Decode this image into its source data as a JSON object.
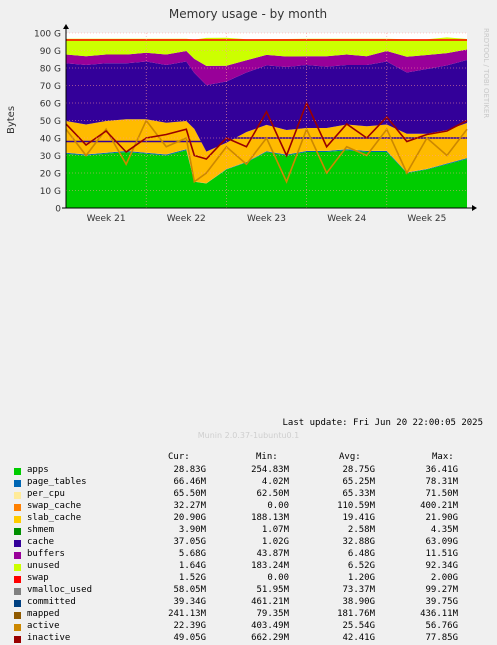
{
  "chart_data": {
    "type": "area",
    "title": "Memory usage - by month",
    "ylabel": "Bytes",
    "side_label": "RRDTOOL / TOBI OETIKER",
    "ylim": [
      0,
      100
    ],
    "ytick_labels": [
      "0",
      "10 G",
      "20 G",
      "30 G",
      "40 G",
      "50 G",
      "60 G",
      "70 G",
      "80 G",
      "90 G",
      "100 G"
    ],
    "ytick_values": [
      0,
      10,
      20,
      30,
      40,
      50,
      60,
      70,
      80,
      90,
      100
    ],
    "xtick_labels": [
      "Week 21",
      "Week 22",
      "Week 23",
      "Week 24",
      "Week 25"
    ],
    "xtick_positions": [
      0.5,
      1.5,
      2.5,
      3.5,
      4.5
    ],
    "xlim": [
      0,
      5
    ],
    "grid": true,
    "x": [
      0,
      0.25,
      0.5,
      0.75,
      1,
      1.25,
      1.5,
      1.6,
      1.75,
      2,
      2.25,
      2.5,
      2.75,
      3,
      3.25,
      3.5,
      3.75,
      4,
      4.25,
      4.5,
      4.75,
      5
    ],
    "stacked_series": [
      {
        "name": "apps",
        "color": "#00cc00",
        "values": [
          31,
          30,
          31,
          32,
          31,
          30,
          33,
          15,
          14,
          22,
          26,
          32,
          30,
          32,
          32,
          33,
          32,
          32,
          20,
          22,
          25,
          28
        ]
      },
      {
        "name": "page_tables",
        "color": "#0066b3",
        "values": [
          0.6,
          0.6,
          0.6,
          0.6,
          0.6,
          0.6,
          0.6,
          0.1,
          0.1,
          0.2,
          0.3,
          0.4,
          0.5,
          0.6,
          0.6,
          0.6,
          0.6,
          0.6,
          0.3,
          0.3,
          0.4,
          0.5
        ]
      },
      {
        "name": "per_cpu",
        "color": "#ffcc00",
        "values": [
          0.1,
          0.1,
          0.1,
          0.1,
          0.1,
          0.1,
          0.1,
          0.1,
          0.1,
          0.1,
          0.1,
          0.1,
          0.1,
          0.1,
          0.1,
          0.1,
          0.1,
          0.1,
          0.1,
          0.1,
          0.1,
          0.1
        ]
      },
      {
        "name": "slab_cache",
        "color": "#ffbb00",
        "values": [
          18,
          17,
          18,
          18,
          19,
          18,
          16,
          30,
          18,
          15,
          17,
          15,
          14,
          13,
          13,
          14,
          14,
          15,
          22,
          20,
          19,
          20
        ]
      },
      {
        "name": "cache",
        "color": "#330099",
        "values": [
          33,
          34,
          33,
          32,
          33,
          33,
          34,
          32,
          38,
          35,
          34,
          34,
          36,
          36,
          35,
          34,
          35,
          36,
          35,
          37,
          37,
          36
        ]
      },
      {
        "name": "buffers",
        "color": "#990099",
        "values": [
          5,
          5,
          5,
          5,
          5,
          6,
          6,
          8,
          11,
          9,
          7,
          6,
          6,
          5,
          6,
          6,
          5,
          6,
          9,
          8,
          7,
          6
        ]
      },
      {
        "name": "unused",
        "color": "#ccff00",
        "values": [
          9,
          10,
          9,
          9,
          8,
          9,
          7,
          11,
          16,
          16,
          12,
          9,
          10,
          10,
          10,
          9,
          10,
          7,
          10,
          9,
          9,
          6
        ]
      }
    ],
    "line_series": [
      {
        "name": "swap",
        "color": "#ff0000",
        "values": [
          1.5,
          1.5,
          1.5,
          1.5,
          1.5,
          1.5,
          1.5,
          1.5,
          1.5,
          1.5,
          1.5,
          1.5,
          1.5,
          1.5,
          1.5,
          1.5,
          1.5,
          1.5,
          1.5,
          1.5,
          1.5,
          1.5
        ],
        "draw": "top"
      },
      {
        "name": "committed",
        "color": "#330099",
        "values": [
          38,
          38,
          38,
          38,
          38,
          38,
          38,
          38,
          38,
          40,
          40,
          40,
          40,
          40,
          40,
          40,
          40,
          40,
          40,
          40,
          40,
          40
        ]
      },
      {
        "name": "active",
        "color": "#cc8800",
        "values": [
          45,
          30,
          45,
          25,
          50,
          35,
          40,
          15,
          20,
          35,
          25,
          40,
          15,
          45,
          20,
          35,
          30,
          45,
          20,
          40,
          30,
          45
        ]
      },
      {
        "name": "inactive",
        "color": "#990000",
        "values": [
          48,
          36,
          44,
          32,
          40,
          42,
          45,
          30,
          28,
          40,
          35,
          55,
          30,
          60,
          35,
          48,
          40,
          52,
          38,
          42,
          44,
          50
        ]
      }
    ]
  },
  "legend": {
    "headers": [
      "Cur:",
      "Min:",
      "Avg:",
      "Max:"
    ],
    "rows": [
      {
        "name": "apps",
        "color": "#00cc00",
        "cur": "28.83G",
        "min": "254.83M",
        "avg": "28.75G",
        "max": "36.41G"
      },
      {
        "name": "page_tables",
        "color": "#0066b3",
        "cur": "66.46M",
        "min": "4.02M",
        "avg": "65.25M",
        "max": "78.31M"
      },
      {
        "name": "per_cpu",
        "color": "#ffeb99",
        "cur": "65.50M",
        "min": "62.50M",
        "avg": "65.33M",
        "max": "71.50M"
      },
      {
        "name": "swap_cache",
        "color": "#ff8000",
        "cur": "32.27M",
        "min": "0.00",
        "avg": "110.59M",
        "max": "400.21M"
      },
      {
        "name": "slab_cache",
        "color": "#ffcc00",
        "cur": "20.90G",
        "min": "188.13M",
        "avg": "19.41G",
        "max": "21.90G"
      },
      {
        "name": "shmem",
        "color": "#008f00",
        "cur": "3.90M",
        "min": "1.07M",
        "avg": "2.58M",
        "max": "4.35M"
      },
      {
        "name": "cache",
        "color": "#330099",
        "cur": "37.05G",
        "min": "1.02G",
        "avg": "32.88G",
        "max": "63.09G"
      },
      {
        "name": "buffers",
        "color": "#990099",
        "cur": "5.68G",
        "min": "43.87M",
        "avg": "6.48G",
        "max": "11.51G"
      },
      {
        "name": "unused",
        "color": "#ccff00",
        "cur": "1.64G",
        "min": "183.24M",
        "avg": "6.52G",
        "max": "92.34G"
      },
      {
        "name": "swap",
        "color": "#ff0000",
        "cur": "1.52G",
        "min": "0.00",
        "avg": "1.20G",
        "max": "2.00G"
      },
      {
        "name": "vmalloc_used",
        "color": "#808080",
        "cur": "58.05M",
        "min": "51.95M",
        "avg": "73.37M",
        "max": "99.27M"
      },
      {
        "name": "committed",
        "color": "#004080",
        "cur": "39.34G",
        "min": "461.21M",
        "avg": "38.90G",
        "max": "39.75G"
      },
      {
        "name": "mapped",
        "color": "#8f5a00",
        "cur": "241.13M",
        "min": "79.35M",
        "avg": "181.76M",
        "max": "436.11M"
      },
      {
        "name": "active",
        "color": "#cc8800",
        "cur": "22.39G",
        "min": "403.49M",
        "avg": "25.54G",
        "max": "56.76G"
      },
      {
        "name": "inactive",
        "color": "#990000",
        "cur": "49.05G",
        "min": "662.29M",
        "avg": "42.41G",
        "max": "77.85G"
      }
    ]
  },
  "footer": {
    "last_update": "Last update: Fri Jun 20 22:00:05 2025",
    "munin": "Munin 2.0.37-1ubuntu0.1"
  }
}
